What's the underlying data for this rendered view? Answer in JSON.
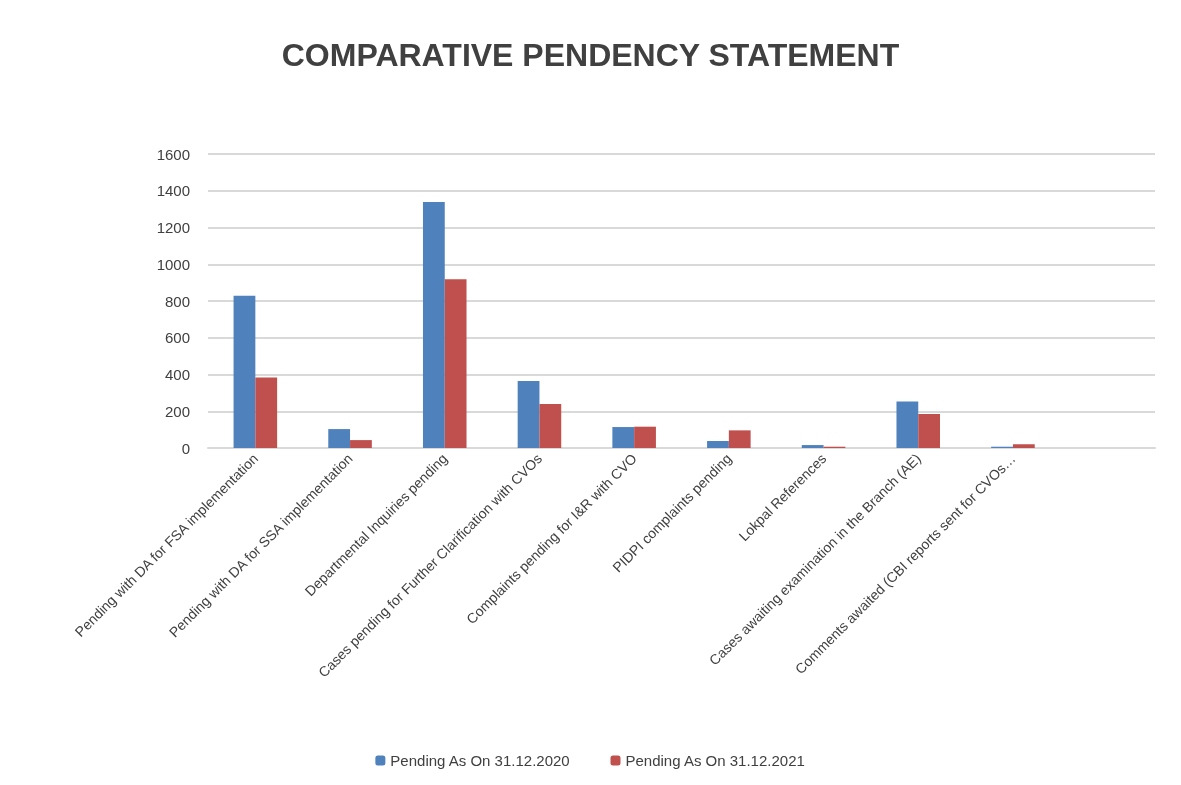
{
  "chart_data": {
    "type": "bar",
    "title": "COMPARATIVE PENDENCY STATEMENT",
    "categories": [
      "Pending with DA for FSA implementation",
      "Pending with DA for SSA implementation",
      "Departmental Inquiries pending",
      "Cases pending for Further Clarification with CVOs",
      "Complaints pending for I&R with CVO",
      "PIDPI complaints pending",
      "Lokpal References",
      "Cases awaiting examination in the Branch (AE)",
      "Comments awaited (CBI reports sent for CVOs…",
      null
    ],
    "series": [
      {
        "name": "Pending As On 31.12.2020",
        "color": "#4f81bd",
        "values": [
          829,
          103,
          1339,
          364,
          114,
          38,
          16,
          253,
          7,
          null
        ]
      },
      {
        "name": "Pending As On 31.12.2021",
        "color": "#c0504d",
        "values": [
          384,
          43,
          919,
          239,
          116,
          96,
          7,
          185,
          20,
          null
        ]
      }
    ],
    "ylim": [
      0,
      1600
    ],
    "yticks": [
      0,
      200,
      400,
      600,
      800,
      1000,
      1200,
      1400,
      1600
    ],
    "grid": "y",
    "legend": "bottom"
  }
}
